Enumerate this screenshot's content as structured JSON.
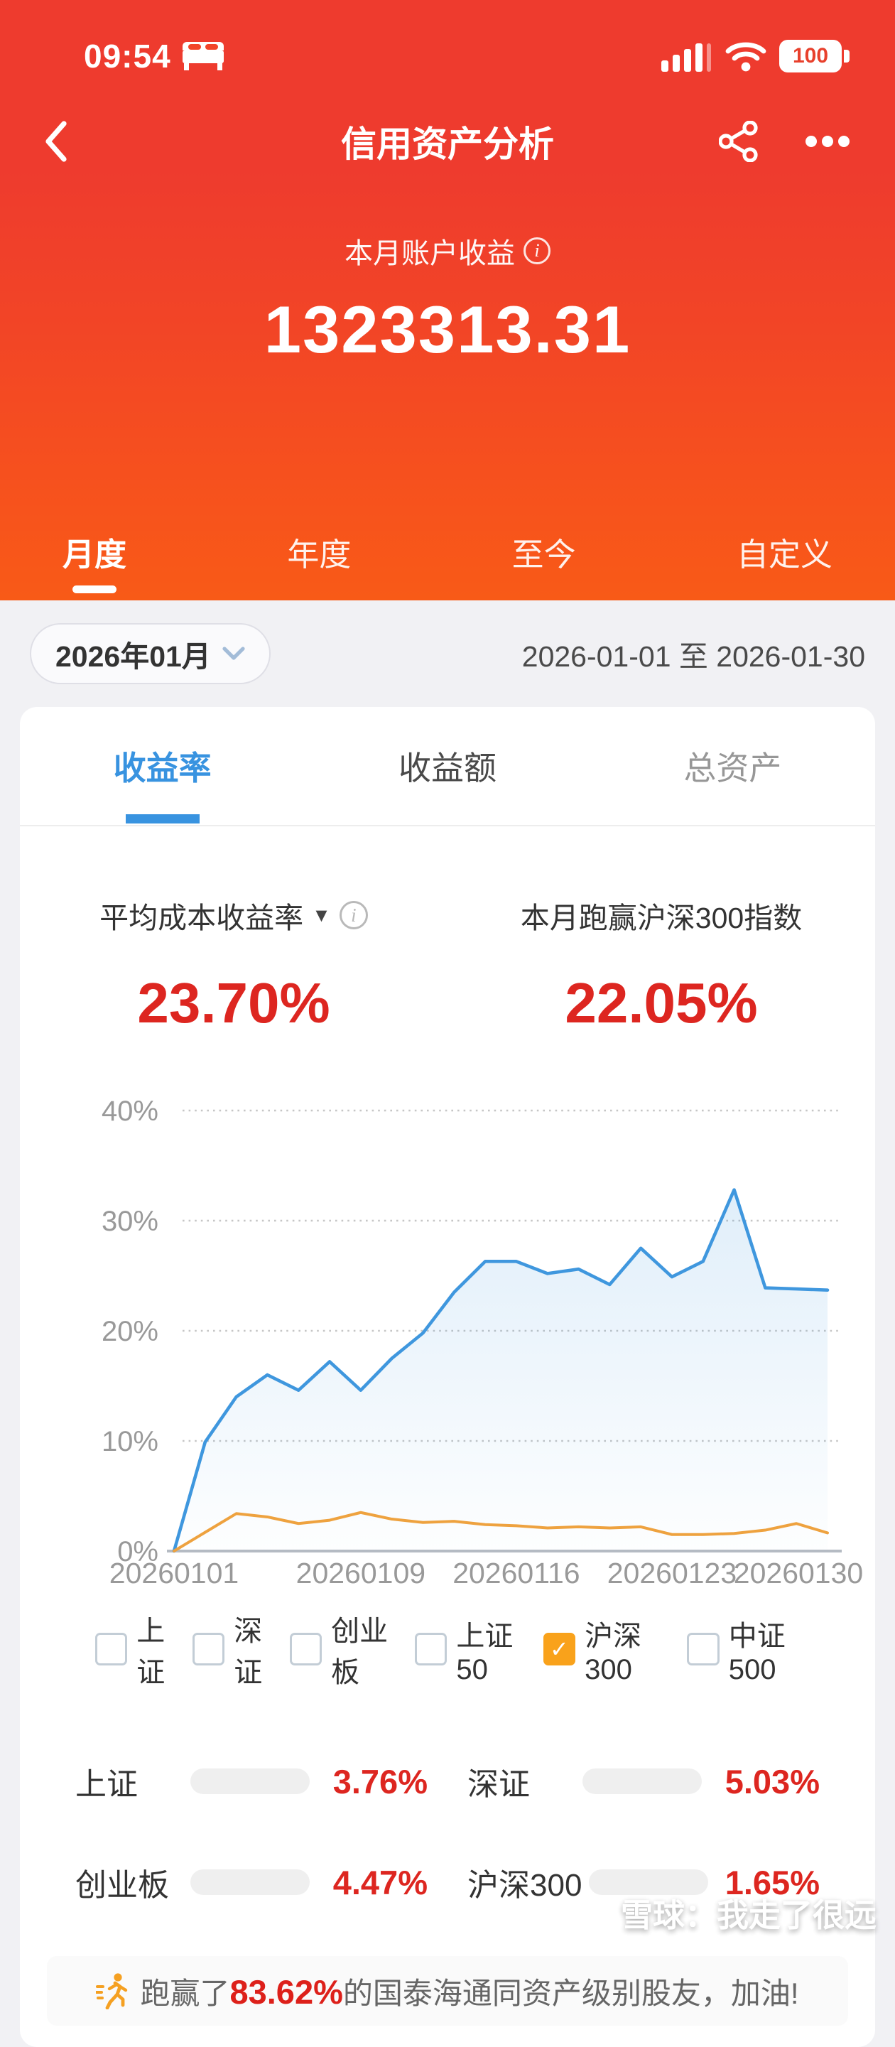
{
  "status_bar": {
    "time": "09:54",
    "battery_level": "100"
  },
  "nav": {
    "title": "信用资产分析"
  },
  "hero": {
    "label": "本月账户收益",
    "value": "1323313.31"
  },
  "period_tabs": {
    "items": [
      {
        "label": "月度",
        "active": true
      },
      {
        "label": "年度",
        "active": false
      },
      {
        "label": "至今",
        "active": false
      },
      {
        "label": "自定义",
        "active": false
      }
    ]
  },
  "date_row": {
    "month": "2026年01月",
    "range": "2026-01-01 至 2026-01-30"
  },
  "metric_tabs": {
    "items": [
      {
        "label": "收益率",
        "active": true
      },
      {
        "label": "收益额",
        "active": false
      },
      {
        "label": "总资产",
        "active": false
      }
    ]
  },
  "metrics": {
    "left": {
      "label": "平均成本收益率",
      "value": "23.70%"
    },
    "right": {
      "label": "本月跑赢沪深300指数",
      "value": "22.05%"
    }
  },
  "chart_data": {
    "type": "line",
    "x": [
      "20260101",
      "20260102",
      "20260105",
      "20260106",
      "20260107",
      "20260108",
      "20260109",
      "20260112",
      "20260113",
      "20260114",
      "20260115",
      "20260116",
      "20260119",
      "20260120",
      "20260121",
      "20260122",
      "20260123",
      "20260126",
      "20260127",
      "20260128",
      "20260129",
      "20260130"
    ],
    "series": [
      {
        "name": "平均成本收益率",
        "color": "#3f97de",
        "area": true,
        "values": [
          0,
          9.9,
          14.0,
          16.0,
          14.6,
          17.2,
          14.6,
          17.5,
          19.8,
          23.5,
          26.3,
          26.3,
          25.2,
          25.6,
          24.2,
          27.5,
          24.9,
          26.3,
          32.8,
          23.9,
          23.8,
          23.7
        ]
      },
      {
        "name": "沪深300",
        "color": "#eea23f",
        "area": false,
        "values": [
          0,
          1.7,
          3.4,
          3.1,
          2.5,
          2.8,
          3.5,
          2.9,
          2.6,
          2.7,
          2.4,
          2.3,
          2.1,
          2.2,
          2.1,
          2.2,
          1.5,
          1.5,
          1.6,
          1.9,
          2.5,
          1.65
        ]
      }
    ],
    "y_ticks": [
      {
        "label": "40%",
        "value": 40
      },
      {
        "label": "30%",
        "value": 30
      },
      {
        "label": "20%",
        "value": 20
      },
      {
        "label": "10%",
        "value": 10
      },
      {
        "label": "0%",
        "value": 0
      }
    ],
    "x_ticks": [
      {
        "label": "20260101",
        "index": 0
      },
      {
        "label": "20260109",
        "index": 6
      },
      {
        "label": "20260116",
        "index": 11
      },
      {
        "label": "20260123",
        "index": 16
      },
      {
        "label": "20260130",
        "index": 21
      }
    ],
    "ylim": [
      0,
      43
    ],
    "grid": "dotted-horizontal",
    "legend_position": "below"
  },
  "legend": {
    "items": [
      {
        "label": "上证",
        "checked": false
      },
      {
        "label": "深证",
        "checked": false
      },
      {
        "label": "创业板",
        "checked": false
      },
      {
        "label": "上证50",
        "checked": false
      },
      {
        "label": "沪深300",
        "checked": true
      },
      {
        "label": "中证500",
        "checked": false
      }
    ]
  },
  "index_stats": {
    "items": [
      {
        "label": "上证",
        "value": "3.76%",
        "bar_percent": 37.6
      },
      {
        "label": "深证",
        "value": "5.03%",
        "bar_percent": 50.3
      },
      {
        "label": "创业板",
        "value": "4.47%",
        "bar_percent": 44.7
      },
      {
        "label": "沪深300",
        "value": "1.65%",
        "bar_percent": 16.5
      }
    ]
  },
  "banner": {
    "prefix": "跑赢了",
    "highlight": "83.62%",
    "suffix": "的国泰海通同资产级别股友，加油!"
  },
  "watermark": {
    "text": "雪球：我走了很远"
  },
  "colors": {
    "header_gradient_top": "#ee3b2e",
    "header_gradient_bottom": "#f85a17",
    "accent_blue": "#3893e0",
    "line_blue": "#3f97de",
    "line_orange": "#eea23f",
    "value_red": "#dd2620",
    "bar_red": "#e8352b",
    "checked_orange": "#f9a21b",
    "page_bg": "#f1f1f4"
  }
}
